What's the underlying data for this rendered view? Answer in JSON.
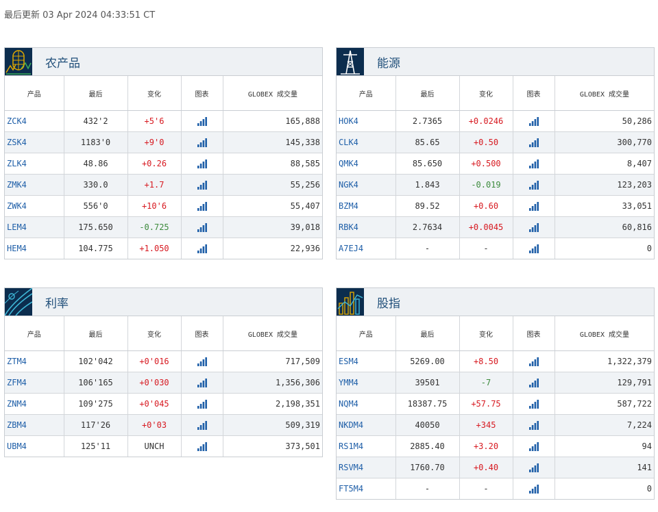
{
  "last_updated": "最后更新 03 Apr 2024 04:33:51 CT",
  "headers": {
    "product": "产品",
    "last": "最后",
    "change": "变化",
    "chart": "图表",
    "volume": "GLOBEX 成交量"
  },
  "colors": {
    "up": "#d71920",
    "down": "#3c8a3c",
    "code": "#1f5fa8",
    "title": "#1f4e79",
    "icon_bg": "#0c2d4e"
  },
  "panels": [
    {
      "title": "农产品",
      "icon": "agriculture-icon",
      "rows": [
        {
          "code": "ZCK4",
          "last": "432'2",
          "change": "+5'6",
          "dir": "up",
          "volume": "165,888"
        },
        {
          "code": "ZSK4",
          "last": "1183'0",
          "change": "+9'0",
          "dir": "up",
          "volume": "145,338"
        },
        {
          "code": "ZLK4",
          "last": "48.86",
          "change": "+0.26",
          "dir": "up",
          "volume": "88,585"
        },
        {
          "code": "ZMK4",
          "last": "330.0",
          "change": "+1.7",
          "dir": "up",
          "volume": "55,256"
        },
        {
          "code": "ZWK4",
          "last": "556'0",
          "change": "+10'6",
          "dir": "up",
          "volume": "55,407"
        },
        {
          "code": "LEM4",
          "last": "175.650",
          "change": "-0.725",
          "dir": "dn",
          "volume": "39,018"
        },
        {
          "code": "HEM4",
          "last": "104.775",
          "change": "+1.050",
          "dir": "up",
          "volume": "22,936"
        }
      ]
    },
    {
      "title": "能源",
      "icon": "oil-derrick-icon",
      "rows": [
        {
          "code": "HOK4",
          "last": "2.7365",
          "change": "+0.0246",
          "dir": "up",
          "volume": "50,286"
        },
        {
          "code": "CLK4",
          "last": "85.65",
          "change": "+0.50",
          "dir": "up",
          "volume": "300,770"
        },
        {
          "code": "QMK4",
          "last": "85.650",
          "change": "+0.500",
          "dir": "up",
          "volume": "8,407"
        },
        {
          "code": "NGK4",
          "last": "1.843",
          "change": "-0.019",
          "dir": "dn",
          "volume": "123,203"
        },
        {
          "code": "BZM4",
          "last": "89.52",
          "change": "+0.60",
          "dir": "up",
          "volume": "33,051"
        },
        {
          "code": "RBK4",
          "last": "2.7634",
          "change": "+0.0045",
          "dir": "up",
          "volume": "60,816"
        },
        {
          "code": "A7EJ4",
          "last": "-",
          "change": "-",
          "dir": "unch",
          "volume": "0"
        }
      ]
    },
    {
      "title": "利率",
      "icon": "interest-rates-icon",
      "rows": [
        {
          "code": "ZTM4",
          "last": "102'042",
          "change": "+0'016",
          "dir": "up",
          "volume": "717,509"
        },
        {
          "code": "ZFM4",
          "last": "106'165",
          "change": "+0'030",
          "dir": "up",
          "volume": "1,356,306"
        },
        {
          "code": "ZNM4",
          "last": "109'275",
          "change": "+0'045",
          "dir": "up",
          "volume": "2,198,351"
        },
        {
          "code": "ZBM4",
          "last": "117'26",
          "change": "+0'03",
          "dir": "up",
          "volume": "509,319"
        },
        {
          "code": "UBM4",
          "last": "125'11",
          "change": "UNCH",
          "dir": "unch",
          "volume": "373,501"
        }
      ]
    },
    {
      "title": "股指",
      "icon": "equity-index-icon",
      "rows": [
        {
          "code": "ESM4",
          "last": "5269.00",
          "change": "+8.50",
          "dir": "up",
          "volume": "1,322,379"
        },
        {
          "code": "YMM4",
          "last": "39501",
          "change": "-7",
          "dir": "dn",
          "volume": "129,791"
        },
        {
          "code": "NQM4",
          "last": "18387.75",
          "change": "+57.75",
          "dir": "up",
          "volume": "587,722"
        },
        {
          "code": "NKDM4",
          "last": "40050",
          "change": "+345",
          "dir": "up",
          "volume": "7,224"
        },
        {
          "code": "RS1M4",
          "last": "2885.40",
          "change": "+3.20",
          "dir": "up",
          "volume": "94"
        },
        {
          "code": "RSVM4",
          "last": "1760.70",
          "change": "+0.40",
          "dir": "up",
          "volume": "141"
        },
        {
          "code": "FT5M4",
          "last": "-",
          "change": "-",
          "dir": "unch",
          "volume": "0"
        }
      ]
    }
  ]
}
